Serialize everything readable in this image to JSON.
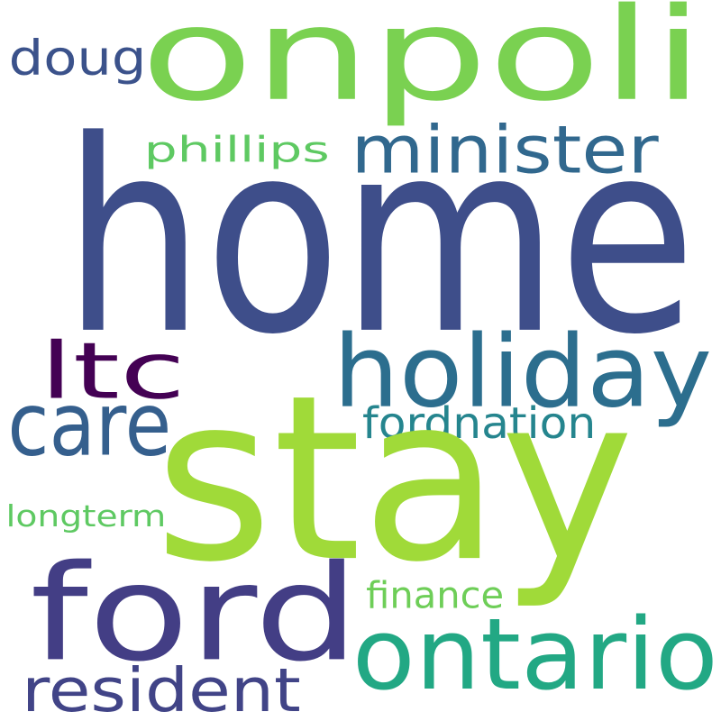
{
  "words": {
    "home": {
      "text": "home",
      "color": "#3e4e8a"
    },
    "stay": {
      "text": "stay",
      "color": "#a0da39"
    },
    "onpoli": {
      "text": "onpoli",
      "color": "#7ad151"
    },
    "ford": {
      "text": "ford",
      "color": "#433e85"
    },
    "holiday": {
      "text": "holiday",
      "color": "#2c6e8e"
    },
    "ontario": {
      "text": "ontario",
      "color": "#22a884"
    },
    "minister": {
      "text": "minister",
      "color": "#31688e"
    },
    "ltc": {
      "text": "ltc",
      "color": "#440154"
    },
    "care": {
      "text": "care",
      "color": "#355f8d"
    },
    "resident": {
      "text": "resident",
      "color": "#414487"
    },
    "doug": {
      "text": "doug",
      "color": "#3b528b"
    },
    "phillips": {
      "text": "phillips",
      "color": "#5ec962"
    },
    "fordnation": {
      "text": "fordnation",
      "color": "#25858e"
    },
    "longterm": {
      "text": "longterm",
      "color": "#5ec962"
    },
    "finance": {
      "text": "finance",
      "color": "#6ece58"
    }
  },
  "background_color": "#ffffff"
}
